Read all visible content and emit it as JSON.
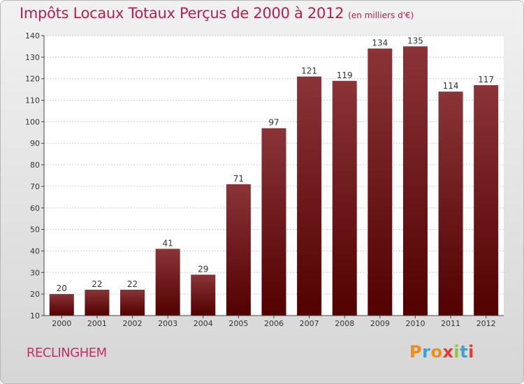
{
  "header": {
    "title": "Impôts Locaux Totaux Perçus de 2000 à 2012",
    "unit": "(en milliers d'€)"
  },
  "footer": {
    "city": "RECLINGHEM",
    "logo": "Proxiti"
  },
  "colors": {
    "title": "#b32050",
    "bar_top": "#8a3438",
    "bar_bottom": "#520000",
    "logo_letters": [
      "#f08a1c",
      "#3aa0d8",
      "#f08a1c",
      "#e8382c",
      "#8cc63f",
      "#3aa0d8",
      "#e8382c"
    ]
  },
  "chart_data": {
    "type": "bar",
    "title": "Impôts Locaux Totaux Perçus de 2000 à 2012",
    "xlabel": "",
    "ylabel": "en milliers d'€",
    "categories": [
      "2000",
      "2001",
      "2002",
      "2003",
      "2004",
      "2005",
      "2006",
      "2007",
      "2008",
      "2009",
      "2010",
      "2011",
      "2012"
    ],
    "values": [
      20,
      22,
      22,
      41,
      29,
      71,
      97,
      121,
      119,
      134,
      135,
      114,
      117
    ],
    "ylim": [
      10,
      140
    ],
    "yticks": [
      10,
      20,
      30,
      40,
      50,
      60,
      70,
      80,
      90,
      100,
      110,
      120,
      130,
      140
    ],
    "grid": true
  }
}
